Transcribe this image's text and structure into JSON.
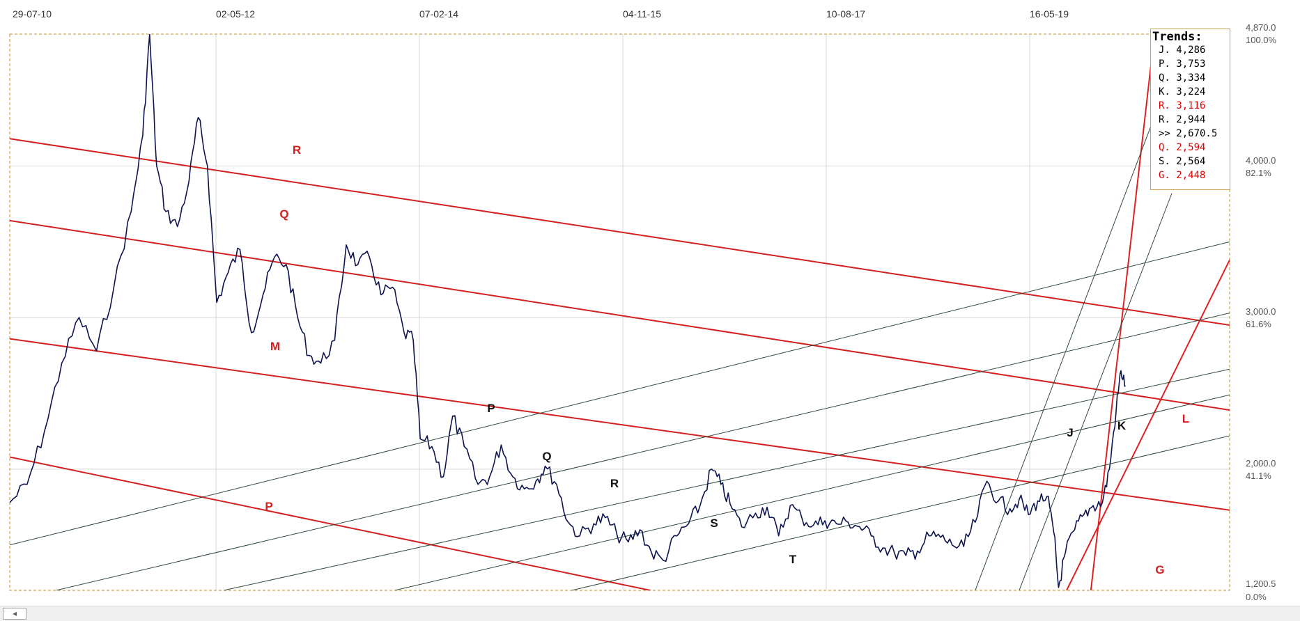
{
  "chart_data": {
    "type": "line",
    "x_ticks": [
      "29-07-10",
      "02-05-12",
      "07-02-14",
      "04-11-15",
      "10-08-17",
      "16-05-19"
    ],
    "y_axis": [
      {
        "value": "4,870.0",
        "percent": "100.0%"
      },
      {
        "value": "4,000.0",
        "percent": "82.1%"
      },
      {
        "value": "3,000.0",
        "percent": "61.6%"
      },
      {
        "value": "2,000.0",
        "percent": "41.1%"
      },
      {
        "value": "1,200.5",
        "percent": "0.0%"
      }
    ],
    "ylim": [
      1200.5,
      4870.0
    ],
    "grid": true,
    "series": [
      {
        "color": "#0d1450",
        "points": [
          [
            2010.57,
            1780
          ],
          [
            2010.72,
            1900
          ],
          [
            2010.87,
            2250
          ],
          [
            2011.02,
            2700
          ],
          [
            2011.17,
            3000
          ],
          [
            2011.32,
            2780
          ],
          [
            2011.47,
            3200
          ],
          [
            2011.62,
            3700
          ],
          [
            2011.72,
            4200
          ],
          [
            2011.78,
            4870
          ],
          [
            2011.84,
            4000
          ],
          [
            2011.92,
            3700
          ],
          [
            2012.02,
            3600
          ],
          [
            2012.12,
            3900
          ],
          [
            2012.2,
            4320
          ],
          [
            2012.28,
            4000
          ],
          [
            2012.36,
            3100
          ],
          [
            2012.46,
            3300
          ],
          [
            2012.56,
            3450
          ],
          [
            2012.66,
            2900
          ],
          [
            2012.76,
            3150
          ],
          [
            2012.86,
            3400
          ],
          [
            2012.96,
            3350
          ],
          [
            2013.06,
            3000
          ],
          [
            2013.16,
            2750
          ],
          [
            2013.26,
            2700
          ],
          [
            2013.38,
            2850
          ],
          [
            2013.48,
            3480
          ],
          [
            2013.58,
            3350
          ],
          [
            2013.68,
            3400
          ],
          [
            2013.78,
            3150
          ],
          [
            2013.88,
            3200
          ],
          [
            2013.98,
            2900
          ],
          [
            2014.06,
            2850
          ],
          [
            2014.12,
            2200
          ],
          [
            2014.22,
            2150
          ],
          [
            2014.32,
            1950
          ],
          [
            2014.4,
            2350
          ],
          [
            2014.5,
            2150
          ],
          [
            2014.62,
            1900
          ],
          [
            2014.72,
            1950
          ],
          [
            2014.82,
            2160
          ],
          [
            2014.92,
            1950
          ],
          [
            2015.02,
            1870
          ],
          [
            2015.12,
            1920
          ],
          [
            2015.2,
            2020
          ],
          [
            2015.3,
            1900
          ],
          [
            2015.4,
            1650
          ],
          [
            2015.5,
            1560
          ],
          [
            2015.62,
            1640
          ],
          [
            2015.72,
            1680
          ],
          [
            2015.82,
            1570
          ],
          [
            2015.92,
            1520
          ],
          [
            2016.02,
            1600
          ],
          [
            2016.12,
            1450
          ],
          [
            2016.22,
            1400
          ],
          [
            2016.34,
            1560
          ],
          [
            2016.44,
            1640
          ],
          [
            2016.54,
            1760
          ],
          [
            2016.64,
            2000
          ],
          [
            2016.72,
            1900
          ],
          [
            2016.8,
            1770
          ],
          [
            2016.9,
            1620
          ],
          [
            2017.02,
            1710
          ],
          [
            2017.12,
            1750
          ],
          [
            2017.22,
            1560
          ],
          [
            2017.32,
            1760
          ],
          [
            2017.42,
            1680
          ],
          [
            2017.52,
            1630
          ],
          [
            2017.62,
            1660
          ],
          [
            2017.72,
            1640
          ],
          [
            2017.82,
            1650
          ],
          [
            2017.92,
            1620
          ],
          [
            2018.02,
            1560
          ],
          [
            2018.12,
            1480
          ],
          [
            2018.22,
            1450
          ],
          [
            2018.32,
            1430
          ],
          [
            2018.42,
            1460
          ],
          [
            2018.52,
            1560
          ],
          [
            2018.62,
            1550
          ],
          [
            2018.72,
            1500
          ],
          [
            2018.82,
            1490
          ],
          [
            2018.92,
            1650
          ],
          [
            2019.02,
            1920
          ],
          [
            2019.12,
            1790
          ],
          [
            2019.22,
            1740
          ],
          [
            2019.3,
            1800
          ],
          [
            2019.38,
            1700
          ],
          [
            2019.46,
            1790
          ],
          [
            2019.54,
            1820
          ],
          [
            2019.6,
            1580
          ],
          [
            2019.64,
            1220
          ],
          [
            2019.7,
            1450
          ],
          [
            2019.78,
            1600
          ],
          [
            2019.86,
            1700
          ],
          [
            2019.94,
            1760
          ],
          [
            2020.02,
            1780
          ],
          [
            2020.08,
            2000
          ],
          [
            2020.14,
            2400
          ],
          [
            2020.18,
            2650
          ],
          [
            2020.22,
            2550
          ]
        ]
      }
    ],
    "trend_lines": [
      {
        "label": "R",
        "color": "#d42020",
        "p1": [
          2010.57,
          4180
        ],
        "p2": [
          2021.12,
          2950
        ]
      },
      {
        "label": "Q",
        "color": "#d42020",
        "p1": [
          2010.57,
          3640
        ],
        "p2": [
          2021.12,
          2390
        ]
      },
      {
        "label": "M",
        "color": "#d42020",
        "p1": [
          2010.57,
          2860
        ],
        "p2": [
          2021.12,
          1730
        ]
      },
      {
        "label": "P",
        "color": "#d42020",
        "p1": [
          2010.57,
          2080
        ],
        "p2": [
          2016.11,
          1200.5
        ]
      },
      {
        "label": "L",
        "color": "#e02020",
        "p1": [
          2019.71,
          1200.5
        ],
        "p2": [
          2021.12,
          3380
        ]
      },
      {
        "label": "G",
        "color": "#e02020",
        "p1": [
          2019.92,
          1200.5
        ],
        "p2": [
          2020.47,
          4870
        ]
      },
      {
        "label": "P",
        "color": "#2f4a3a",
        "p1": [
          2010.57,
          1500
        ],
        "p2": [
          2021.12,
          3500
        ]
      },
      {
        "label": "Q",
        "color": "#2f4a3a",
        "p1": [
          2010.97,
          1200.5
        ],
        "p2": [
          2021.12,
          3030
        ]
      },
      {
        "label": "R",
        "color": "#2f4a3a",
        "p1": [
          2012.42,
          1200.5
        ],
        "p2": [
          2021.12,
          2660
        ]
      },
      {
        "label": "S",
        "color": "#2f4a3a",
        "p1": [
          2013.9,
          1200.5
        ],
        "p2": [
          2021.12,
          2490
        ]
      },
      {
        "label": "T",
        "color": "#2f4a3a",
        "p1": [
          2015.43,
          1200.5
        ],
        "p2": [
          2021.12,
          2220
        ]
      },
      {
        "label": "J",
        "color": "#2f4a3a",
        "p1": [
          2018.92,
          1200.5
        ],
        "p2": [
          2020.74,
          4870
        ]
      },
      {
        "label": "K",
        "color": "#2f4a3a",
        "p1": [
          2019.3,
          1200.5
        ],
        "p2": [
          2020.62,
          3820
        ]
      }
    ],
    "trends_box": {
      "title": "Trends:",
      "rows": [
        {
          "text": "J. 4,286",
          "color": "#000000"
        },
        {
          "text": "P. 3,753",
          "color": "#000000"
        },
        {
          "text": "Q. 3,334",
          "color": "#000000"
        },
        {
          "text": "K. 3,224",
          "color": "#000000"
        },
        {
          "text": "R. 3,116",
          "color": "#e00000"
        },
        {
          "text": "R. 2,944",
          "color": "#000000"
        },
        {
          "text": ">> 2,670.5",
          "color": "#000000"
        },
        {
          "text": "Q. 2,594",
          "color": "#e00000"
        },
        {
          "text": "S. 2,564",
          "color": "#000000"
        },
        {
          "text": "G. 2,448",
          "color": "#e00000"
        }
      ]
    },
    "colors": {
      "price": "#0d1450",
      "red_trend": "#d42020",
      "green_trend": "#2f4a3a",
      "border": "#c8a24a",
      "grid": "#d8d8d8"
    }
  },
  "scrollbar": {
    "left_arrow": "◂"
  }
}
